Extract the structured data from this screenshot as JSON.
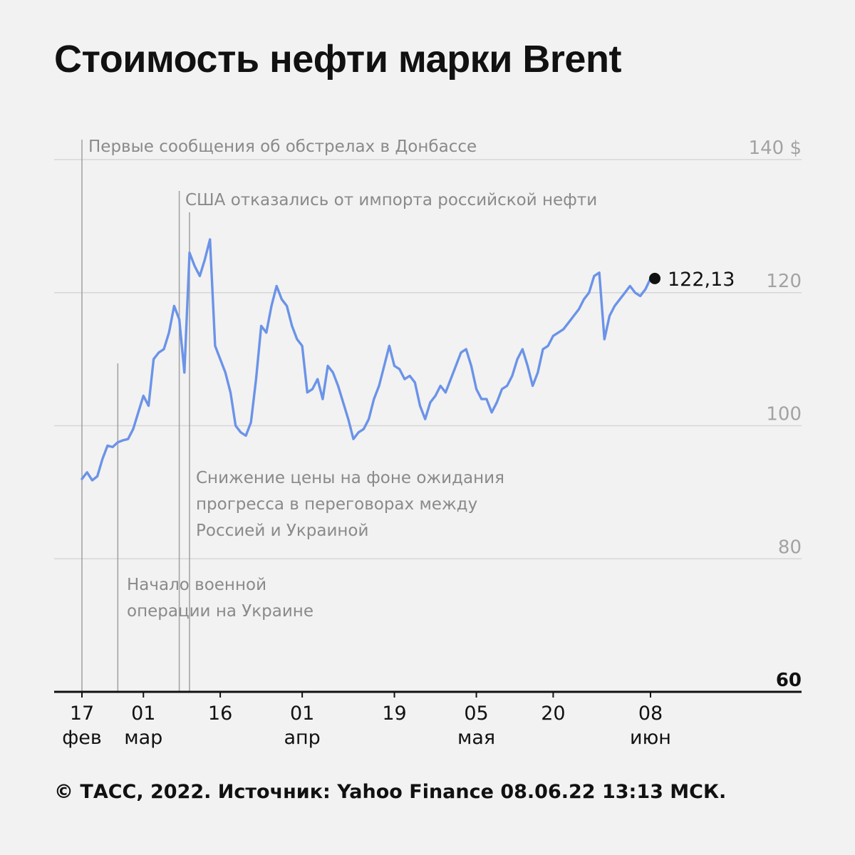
{
  "header": {
    "title": "Стоимость нефти марки Brent"
  },
  "footer": {
    "source": "© ТАСС, 2022. Источник: Yahoo Finance 08.06.22 13:13 МСК."
  },
  "colors": {
    "line": "#6b93e8",
    "grid": "#d6d6d6",
    "axis": "#111111",
    "muted": "#8a8a8a",
    "event_line": "#a4a4a4",
    "background": "#f2f2f2"
  },
  "chart_data": {
    "type": "line",
    "title": "Стоимость нефти марки Brent",
    "xlabel": "",
    "ylabel": "",
    "y_unit_label": "$",
    "ylim": [
      60,
      140
    ],
    "y_ticks": [
      60,
      80,
      100,
      120,
      140
    ],
    "y_tick_labels": [
      "60",
      "80",
      "100",
      "120",
      "140 $"
    ],
    "xlim": [
      "2022-02-16",
      "2022-06-22"
    ],
    "x_ticks": [
      {
        "date": "2022-02-17",
        "day": "17",
        "month": "фев"
      },
      {
        "date": "2022-03-01",
        "day": "01",
        "month": "мар"
      },
      {
        "date": "2022-03-16",
        "day": "16",
        "month": ""
      },
      {
        "date": "2022-04-01",
        "day": "01",
        "month": "апр"
      },
      {
        "date": "2022-04-19",
        "day": "19",
        "month": ""
      },
      {
        "date": "2022-05-05",
        "day": "05",
        "month": "мая"
      },
      {
        "date": "2022-05-20",
        "day": "20",
        "month": ""
      },
      {
        "date": "2022-06-08",
        "day": "08",
        "month": "июн"
      }
    ],
    "grid": true,
    "series": [
      {
        "x": [
          "2022-02-17",
          "2022-02-18",
          "2022-02-19",
          "2022-02-20",
          "2022-02-21",
          "2022-02-22",
          "2022-02-23",
          "2022-02-24",
          "2022-02-25",
          "2022-02-26",
          "2022-02-27",
          "2022-02-28",
          "2022-03-01",
          "2022-03-02",
          "2022-03-03",
          "2022-03-04",
          "2022-03-05",
          "2022-03-06",
          "2022-03-07",
          "2022-03-08",
          "2022-03-09",
          "2022-03-10",
          "2022-03-11",
          "2022-03-12",
          "2022-03-13",
          "2022-03-14",
          "2022-03-15",
          "2022-03-16",
          "2022-03-17",
          "2022-03-18",
          "2022-03-19",
          "2022-03-20",
          "2022-03-21",
          "2022-03-22",
          "2022-03-23",
          "2022-03-24",
          "2022-03-25",
          "2022-03-26",
          "2022-03-27",
          "2022-03-28",
          "2022-03-29",
          "2022-03-30",
          "2022-03-31",
          "2022-04-01",
          "2022-04-02",
          "2022-04-03",
          "2022-04-04",
          "2022-04-05",
          "2022-04-06",
          "2022-04-07",
          "2022-04-08",
          "2022-04-09",
          "2022-04-10",
          "2022-04-11",
          "2022-04-12",
          "2022-04-13",
          "2022-04-14",
          "2022-04-15",
          "2022-04-16",
          "2022-04-17",
          "2022-04-18",
          "2022-04-19",
          "2022-04-20",
          "2022-04-21",
          "2022-04-22",
          "2022-04-23",
          "2022-04-24",
          "2022-04-25",
          "2022-04-26",
          "2022-04-27",
          "2022-04-28",
          "2022-04-29",
          "2022-04-30",
          "2022-05-01",
          "2022-05-02",
          "2022-05-03",
          "2022-05-04",
          "2022-05-05",
          "2022-05-06",
          "2022-05-07",
          "2022-05-08",
          "2022-05-09",
          "2022-05-10",
          "2022-05-11",
          "2022-05-12",
          "2022-05-13",
          "2022-05-14",
          "2022-05-15",
          "2022-05-16",
          "2022-05-17",
          "2022-05-18",
          "2022-05-19",
          "2022-05-20",
          "2022-05-21",
          "2022-05-22",
          "2022-05-23",
          "2022-05-24",
          "2022-05-25",
          "2022-05-26",
          "2022-05-27",
          "2022-05-28",
          "2022-05-29",
          "2022-05-30",
          "2022-05-31",
          "2022-06-01",
          "2022-06-02",
          "2022-06-03",
          "2022-06-04",
          "2022-06-05",
          "2022-06-06",
          "2022-06-07",
          "2022-06-08"
        ],
        "y": [
          92.0,
          93.0,
          91.8,
          92.4,
          95.0,
          97.0,
          96.8,
          97.5,
          97.8,
          98.0,
          99.5,
          102.0,
          104.5,
          103.0,
          110.0,
          111.0,
          111.5,
          114.0,
          118.0,
          116.0,
          108.0,
          126.0,
          124.0,
          122.5,
          125.0,
          128.0,
          112.0,
          110.0,
          108.0,
          105.0,
          100.0,
          99.0,
          98.5,
          100.5,
          107.0,
          115.0,
          114.0,
          118.0,
          121.0,
          119.0,
          118.0,
          115.0,
          113.0,
          112.0,
          105.0,
          105.5,
          107.0,
          104.0,
          109.0,
          108.0,
          106.0,
          103.5,
          101.0,
          98.0,
          99.0,
          99.5,
          101.0,
          104.0,
          106.0,
          109.0,
          112.0,
          109.0,
          108.5,
          107.0,
          107.5,
          106.5,
          103.0,
          101.0,
          103.5,
          104.5,
          106.0,
          105.0,
          107.0,
          109.0,
          111.0,
          111.5,
          109.0,
          105.5,
          104.0,
          104.0,
          102.0,
          103.5,
          105.5,
          106.0,
          107.5,
          110.0,
          111.5,
          109.0,
          106.0,
          108.0,
          111.5,
          112.0,
          113.5,
          114.0,
          114.5,
          115.5,
          116.5,
          117.5,
          119.0,
          120.0,
          122.5,
          123.0,
          113.0,
          116.5,
          118.0,
          119.0,
          120.0,
          121.0,
          120.0,
          119.5,
          120.5,
          122.13
        ]
      }
    ],
    "last_value": {
      "date": "2022-06-08",
      "value": 122.13,
      "label": "122,13"
    },
    "annotations": [
      {
        "date": "2022-02-17",
        "text": "Первые сообщения об обстрелах в Донбассе"
      },
      {
        "date": "2022-02-24",
        "text_lines": [
          "Начало военной",
          "операции на Украине"
        ]
      },
      {
        "date": "2022-03-08",
        "text": "США отказались от импорта российской нефти"
      },
      {
        "date": "2022-03-10",
        "text_lines": [
          "Снижение цены на фоне ожидания",
          "прогресса в переговорах между",
          "Россией и Украиной"
        ]
      }
    ]
  }
}
